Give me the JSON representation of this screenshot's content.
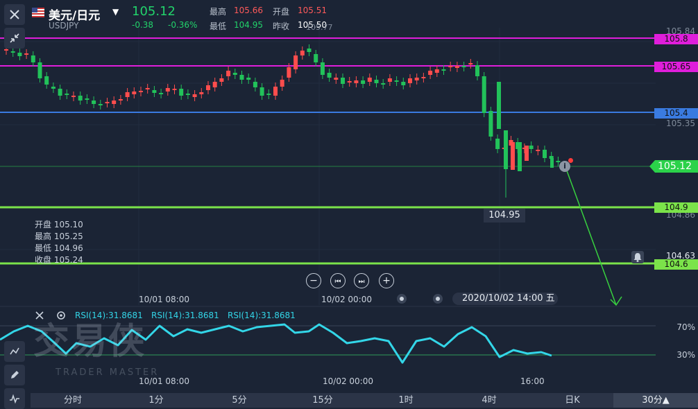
{
  "header": {
    "pair_name": "美元/日元",
    "symbol": "USDJPY",
    "price": "105.12",
    "change": "-0.38",
    "change_pct": "-0.36%",
    "high_label": "最高",
    "high_value": "105.66",
    "open_label": "开盘",
    "open_value": "105.51",
    "low_label": "最低",
    "low_value": "104.95",
    "prev_close_label": "昨收",
    "prev_close_value": "105.50",
    "overlap_value": "105.77"
  },
  "price_axis": {
    "ticks": [
      "105.84",
      "105.35",
      "104.86",
      "104.63"
    ]
  },
  "lines": [
    {
      "label": "105.8",
      "color": "#e01edb"
    },
    {
      "label": "105.65",
      "color": "#e01edb"
    },
    {
      "label": "105.4",
      "color": "#3a7be0"
    },
    {
      "label": "105.12",
      "color": "#2bd24a"
    },
    {
      "label": "104.9",
      "color": "#7be34a"
    },
    {
      "label": "104.6",
      "color": "#7be34a"
    }
  ],
  "low_marker": "104.95",
  "ohlc_panel": {
    "open": "开盘 105.10",
    "high": "最高 105.25",
    "low": "最低 104.96",
    "close": "收盘 105.24"
  },
  "main_time_axis": [
    "10/01 08:00",
    "10/02 00:00"
  ],
  "crosshair_time": "2020/10/02 14:00 五",
  "rsi": {
    "label_1": "RSI(14):31.8681",
    "label_2": "RSI(14):31.8681",
    "label_3": "RSI(14):31.8681",
    "level_high": "70%",
    "level_low": "30%"
  },
  "rsi_time_axis": [
    "10/01 08:00",
    "10/02 00:00",
    "16:00"
  ],
  "watermark": {
    "cn": "交易侠",
    "en": "TRADER MASTER"
  },
  "timeframes": [
    "分时",
    "1分",
    "5分",
    "15分",
    "1时",
    "4时",
    "日K",
    "30分▲"
  ],
  "active_timeframe": "30分▲",
  "colors": {
    "up": "#ff4d4d",
    "down": "#22c25a",
    "rsi": "#33d6e8"
  }
}
